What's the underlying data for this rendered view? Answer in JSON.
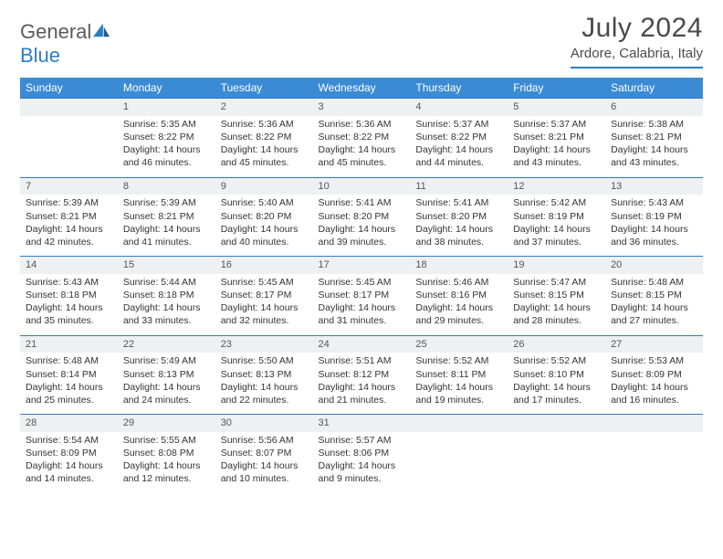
{
  "logo": {
    "part1": "General",
    "part2": "Blue"
  },
  "title": {
    "month": "July 2024",
    "location": "Ardore, Calabria, Italy"
  },
  "colors": {
    "header_bg": "#3b8bd4",
    "accent": "#2d7dc4",
    "daynum_bg": "#eef0f2",
    "text": "#333333"
  },
  "day_headers": [
    "Sunday",
    "Monday",
    "Tuesday",
    "Wednesday",
    "Thursday",
    "Friday",
    "Saturday"
  ],
  "weeks": [
    [
      {
        "n": "",
        "lines": []
      },
      {
        "n": "1",
        "lines": [
          "Sunrise: 5:35 AM",
          "Sunset: 8:22 PM",
          "Daylight: 14 hours",
          "and 46 minutes."
        ]
      },
      {
        "n": "2",
        "lines": [
          "Sunrise: 5:36 AM",
          "Sunset: 8:22 PM",
          "Daylight: 14 hours",
          "and 45 minutes."
        ]
      },
      {
        "n": "3",
        "lines": [
          "Sunrise: 5:36 AM",
          "Sunset: 8:22 PM",
          "Daylight: 14 hours",
          "and 45 minutes."
        ]
      },
      {
        "n": "4",
        "lines": [
          "Sunrise: 5:37 AM",
          "Sunset: 8:22 PM",
          "Daylight: 14 hours",
          "and 44 minutes."
        ]
      },
      {
        "n": "5",
        "lines": [
          "Sunrise: 5:37 AM",
          "Sunset: 8:21 PM",
          "Daylight: 14 hours",
          "and 43 minutes."
        ]
      },
      {
        "n": "6",
        "lines": [
          "Sunrise: 5:38 AM",
          "Sunset: 8:21 PM",
          "Daylight: 14 hours",
          "and 43 minutes."
        ]
      }
    ],
    [
      {
        "n": "7",
        "lines": [
          "Sunrise: 5:39 AM",
          "Sunset: 8:21 PM",
          "Daylight: 14 hours",
          "and 42 minutes."
        ]
      },
      {
        "n": "8",
        "lines": [
          "Sunrise: 5:39 AM",
          "Sunset: 8:21 PM",
          "Daylight: 14 hours",
          "and 41 minutes."
        ]
      },
      {
        "n": "9",
        "lines": [
          "Sunrise: 5:40 AM",
          "Sunset: 8:20 PM",
          "Daylight: 14 hours",
          "and 40 minutes."
        ]
      },
      {
        "n": "10",
        "lines": [
          "Sunrise: 5:41 AM",
          "Sunset: 8:20 PM",
          "Daylight: 14 hours",
          "and 39 minutes."
        ]
      },
      {
        "n": "11",
        "lines": [
          "Sunrise: 5:41 AM",
          "Sunset: 8:20 PM",
          "Daylight: 14 hours",
          "and 38 minutes."
        ]
      },
      {
        "n": "12",
        "lines": [
          "Sunrise: 5:42 AM",
          "Sunset: 8:19 PM",
          "Daylight: 14 hours",
          "and 37 minutes."
        ]
      },
      {
        "n": "13",
        "lines": [
          "Sunrise: 5:43 AM",
          "Sunset: 8:19 PM",
          "Daylight: 14 hours",
          "and 36 minutes."
        ]
      }
    ],
    [
      {
        "n": "14",
        "lines": [
          "Sunrise: 5:43 AM",
          "Sunset: 8:18 PM",
          "Daylight: 14 hours",
          "and 35 minutes."
        ]
      },
      {
        "n": "15",
        "lines": [
          "Sunrise: 5:44 AM",
          "Sunset: 8:18 PM",
          "Daylight: 14 hours",
          "and 33 minutes."
        ]
      },
      {
        "n": "16",
        "lines": [
          "Sunrise: 5:45 AM",
          "Sunset: 8:17 PM",
          "Daylight: 14 hours",
          "and 32 minutes."
        ]
      },
      {
        "n": "17",
        "lines": [
          "Sunrise: 5:45 AM",
          "Sunset: 8:17 PM",
          "Daylight: 14 hours",
          "and 31 minutes."
        ]
      },
      {
        "n": "18",
        "lines": [
          "Sunrise: 5:46 AM",
          "Sunset: 8:16 PM",
          "Daylight: 14 hours",
          "and 29 minutes."
        ]
      },
      {
        "n": "19",
        "lines": [
          "Sunrise: 5:47 AM",
          "Sunset: 8:15 PM",
          "Daylight: 14 hours",
          "and 28 minutes."
        ]
      },
      {
        "n": "20",
        "lines": [
          "Sunrise: 5:48 AM",
          "Sunset: 8:15 PM",
          "Daylight: 14 hours",
          "and 27 minutes."
        ]
      }
    ],
    [
      {
        "n": "21",
        "lines": [
          "Sunrise: 5:48 AM",
          "Sunset: 8:14 PM",
          "Daylight: 14 hours",
          "and 25 minutes."
        ]
      },
      {
        "n": "22",
        "lines": [
          "Sunrise: 5:49 AM",
          "Sunset: 8:13 PM",
          "Daylight: 14 hours",
          "and 24 minutes."
        ]
      },
      {
        "n": "23",
        "lines": [
          "Sunrise: 5:50 AM",
          "Sunset: 8:13 PM",
          "Daylight: 14 hours",
          "and 22 minutes."
        ]
      },
      {
        "n": "24",
        "lines": [
          "Sunrise: 5:51 AM",
          "Sunset: 8:12 PM",
          "Daylight: 14 hours",
          "and 21 minutes."
        ]
      },
      {
        "n": "25",
        "lines": [
          "Sunrise: 5:52 AM",
          "Sunset: 8:11 PM",
          "Daylight: 14 hours",
          "and 19 minutes."
        ]
      },
      {
        "n": "26",
        "lines": [
          "Sunrise: 5:52 AM",
          "Sunset: 8:10 PM",
          "Daylight: 14 hours",
          "and 17 minutes."
        ]
      },
      {
        "n": "27",
        "lines": [
          "Sunrise: 5:53 AM",
          "Sunset: 8:09 PM",
          "Daylight: 14 hours",
          "and 16 minutes."
        ]
      }
    ],
    [
      {
        "n": "28",
        "lines": [
          "Sunrise: 5:54 AM",
          "Sunset: 8:09 PM",
          "Daylight: 14 hours",
          "and 14 minutes."
        ]
      },
      {
        "n": "29",
        "lines": [
          "Sunrise: 5:55 AM",
          "Sunset: 8:08 PM",
          "Daylight: 14 hours",
          "and 12 minutes."
        ]
      },
      {
        "n": "30",
        "lines": [
          "Sunrise: 5:56 AM",
          "Sunset: 8:07 PM",
          "Daylight: 14 hours",
          "and 10 minutes."
        ]
      },
      {
        "n": "31",
        "lines": [
          "Sunrise: 5:57 AM",
          "Sunset: 8:06 PM",
          "Daylight: 14 hours",
          "and 9 minutes."
        ]
      },
      {
        "n": "",
        "lines": []
      },
      {
        "n": "",
        "lines": []
      },
      {
        "n": "",
        "lines": []
      }
    ]
  ]
}
